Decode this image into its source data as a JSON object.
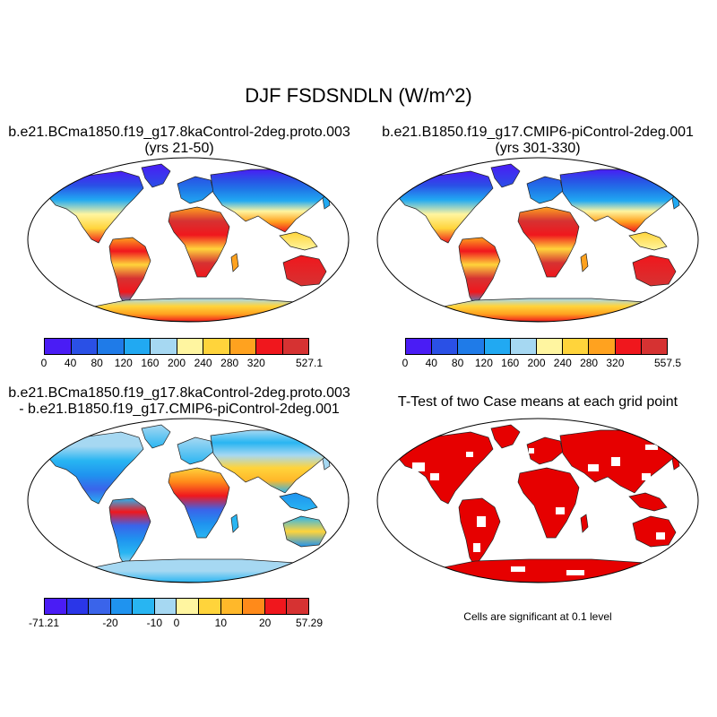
{
  "title": "DJF FSDSNDLN (W/m^2)",
  "panels": [
    {
      "id": "case1",
      "title_lines": [
        "b.e21.BCma1850.f19_g17.8kaControl-2deg.proto.003",
        "(yrs 21-50)"
      ],
      "colorbar": {
        "colors": [
          "#4a1cf5",
          "#2a50e6",
          "#1f7be8",
          "#21a9f2",
          "#a6d8f2",
          "#fff5a0",
          "#ffd43b",
          "#ffa21f",
          "#f0171d",
          "#d63232"
        ],
        "labels": [
          "0",
          "40",
          "80",
          "120",
          "160",
          "200",
          "240",
          "280",
          "320",
          "527.1"
        ]
      }
    },
    {
      "id": "case2",
      "title_lines": [
        "b.e21.B1850.f19_g17.CMIP6-piControl-2deg.001",
        "(yrs 301-330)"
      ],
      "colorbar": {
        "colors": [
          "#4a1cf5",
          "#2a50e6",
          "#1f7be8",
          "#21a9f2",
          "#a6d8f2",
          "#fff5a0",
          "#ffd43b",
          "#ffa21f",
          "#f0171d",
          "#d63232"
        ],
        "labels": [
          "0",
          "40",
          "80",
          "120",
          "160",
          "200",
          "240",
          "280",
          "320",
          "557.5"
        ]
      }
    },
    {
      "id": "diff",
      "title_lines": [
        "b.e21.BCma1850.f19_g17.8kaControl-2deg.proto.003",
        "- b.e21.B1850.f19_g17.CMIP6-piControl-2deg.001"
      ],
      "colorbar": {
        "colors": [
          "#4a1cf5",
          "#2a36e8",
          "#3a64ea",
          "#1f93ef",
          "#28b5f2",
          "#a6d8f2",
          "#fff5a0",
          "#ffd43b",
          "#ffb82a",
          "#ff8a1a",
          "#f0171d",
          "#d63232"
        ],
        "labels": [
          "-71.21",
          "-20",
          "-10",
          "0",
          "10",
          "20",
          "57.29"
        ]
      }
    },
    {
      "id": "ttest",
      "title_lines": [
        "T-Test of two Case means at each grid point"
      ],
      "note": "Cells are significant at 0.1 level"
    }
  ]
}
